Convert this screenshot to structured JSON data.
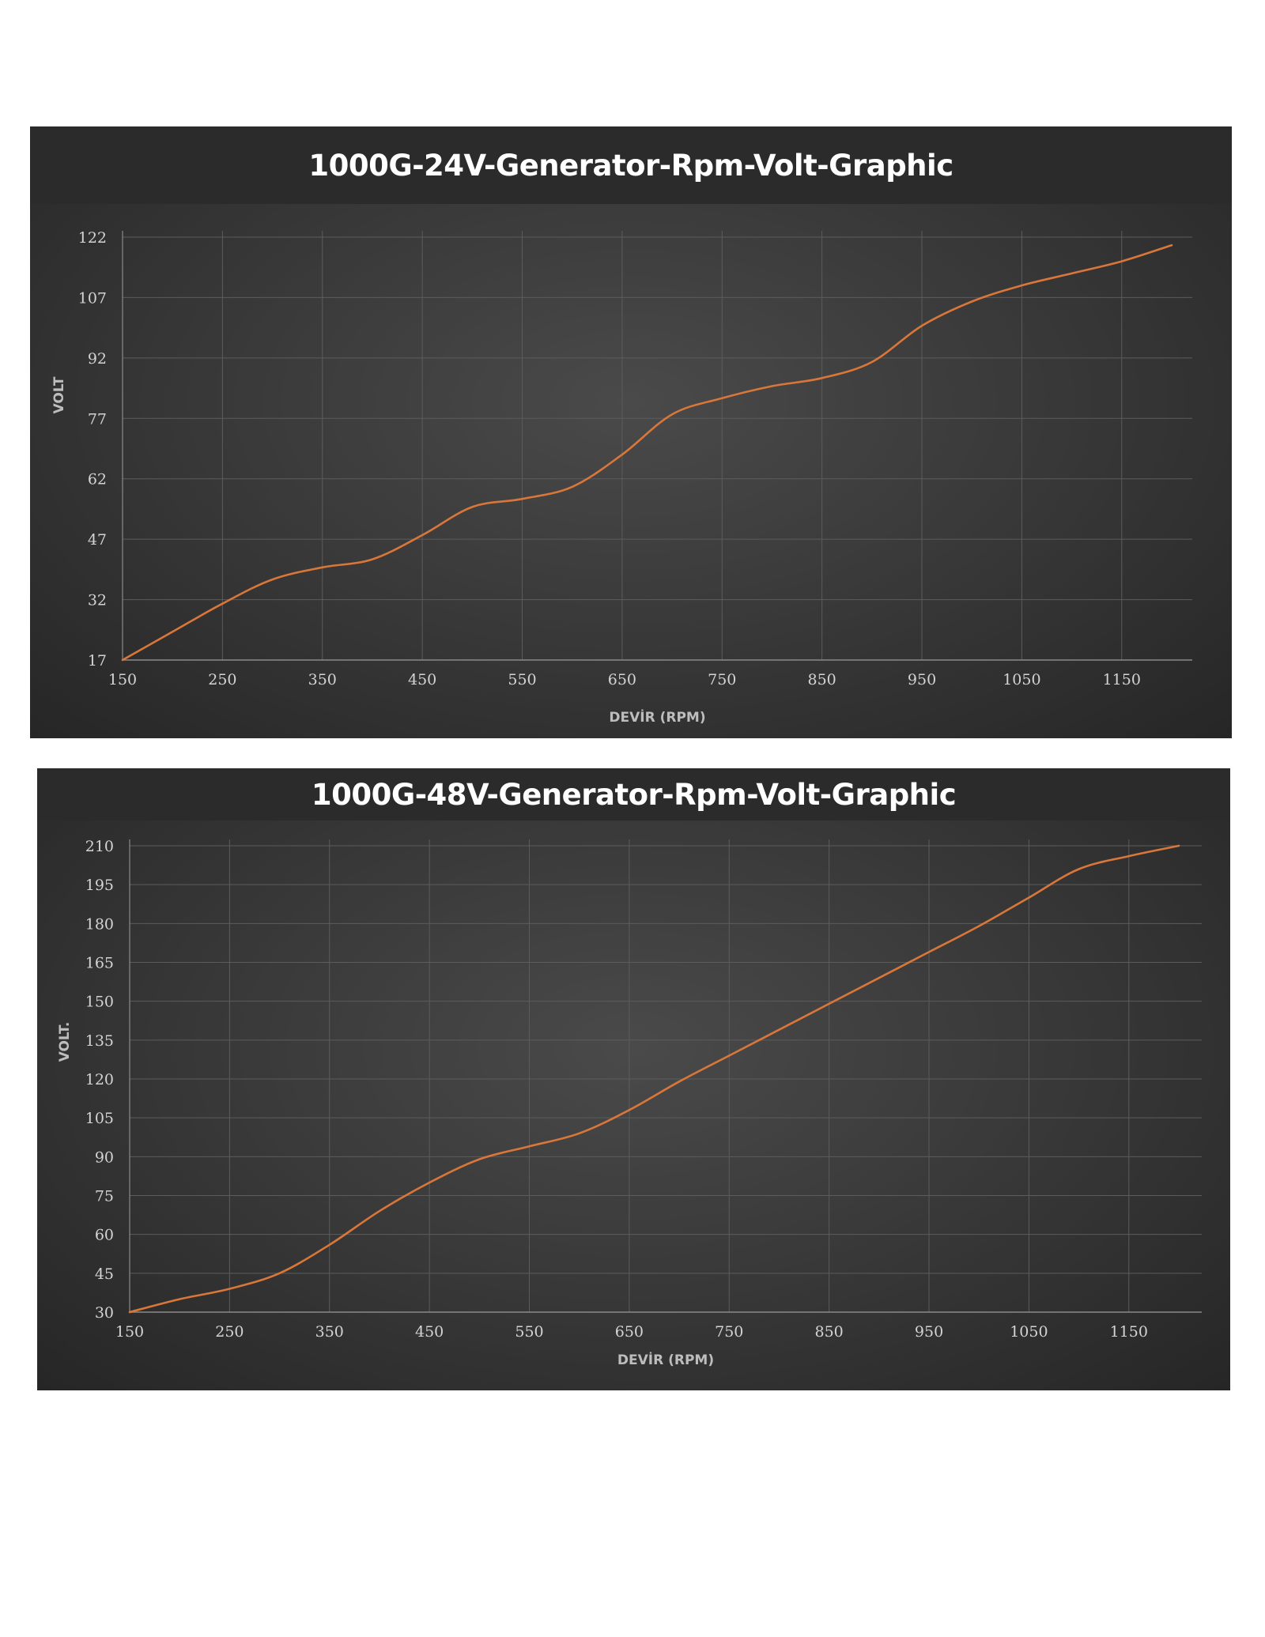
{
  "page": {
    "background": "#ffffff"
  },
  "colors": {
    "line": "#d9773a",
    "grid": "#5c5c5c",
    "axis": "#8a8a8a",
    "title_band": "#2b2b2b"
  },
  "chart_data": [
    {
      "type": "line",
      "title": "1000G-24V-Generator-Rpm-Volt-Graphic",
      "xlabel": "DEVİR (RPM)",
      "ylabel": "VOLT",
      "x_ticks": [
        150,
        250,
        350,
        450,
        550,
        650,
        750,
        850,
        950,
        1050,
        1150
      ],
      "y_ticks": [
        17,
        32,
        47,
        62,
        77,
        92,
        107,
        122
      ],
      "xlim": [
        150,
        1225
      ],
      "ylim": [
        17,
        127
      ],
      "grid": true,
      "legend": "none",
      "x": [
        150,
        200,
        250,
        300,
        350,
        400,
        450,
        500,
        550,
        600,
        650,
        700,
        750,
        800,
        850,
        900,
        950,
        1000,
        1050,
        1100,
        1150,
        1200
      ],
      "series": [
        {
          "values": [
            17,
            24,
            31,
            37,
            40,
            42,
            48,
            55,
            57,
            60,
            68,
            78,
            82,
            85,
            87,
            91,
            100,
            106,
            110,
            113,
            116,
            120
          ]
        }
      ]
    },
    {
      "type": "line",
      "title": "1000G-48V-Generator-Rpm-Volt-Graphic",
      "xlabel": "DEVİR (RPM)",
      "ylabel": "VOLT.",
      "x_ticks": [
        150,
        250,
        350,
        450,
        550,
        650,
        750,
        850,
        950,
        1050,
        1150
      ],
      "y_ticks": [
        30,
        45,
        60,
        75,
        90,
        105,
        120,
        135,
        150,
        165,
        180,
        195,
        210
      ],
      "xlim": [
        150,
        1225
      ],
      "ylim": [
        30,
        210
      ],
      "grid": true,
      "legend": "none",
      "x": [
        150,
        200,
        250,
        300,
        350,
        400,
        450,
        500,
        550,
        600,
        650,
        700,
        750,
        800,
        850,
        900,
        950,
        1000,
        1050,
        1100,
        1150,
        1200
      ],
      "series": [
        {
          "values": [
            30,
            35,
            39,
            45,
            56,
            69,
            80,
            89,
            94,
            99,
            108,
            119,
            129,
            139,
            149,
            159,
            169,
            179,
            190,
            201,
            206,
            210
          ]
        }
      ]
    }
  ]
}
